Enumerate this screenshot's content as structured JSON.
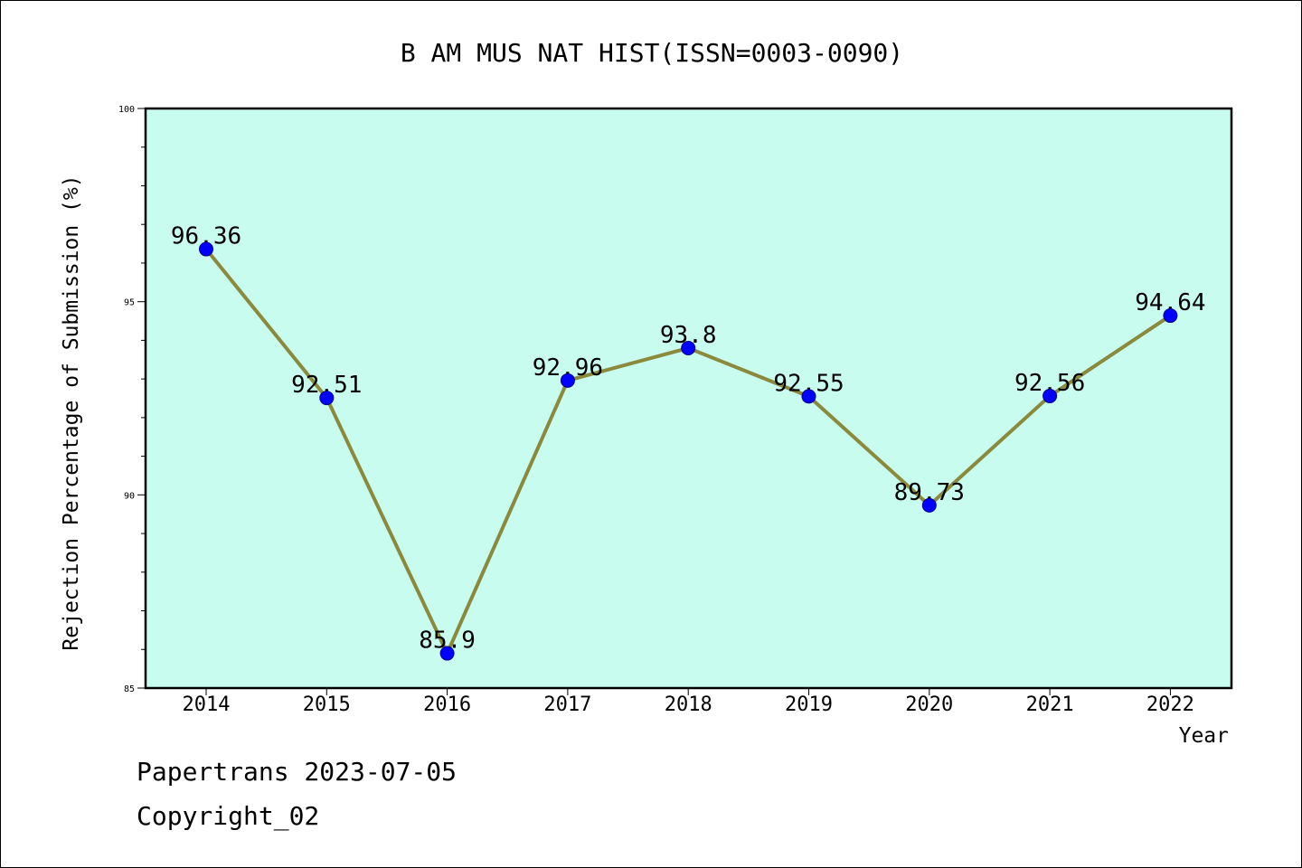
{
  "chart_data": {
    "type": "line",
    "title": "B AM MUS NAT HIST(ISSN=0003-0090)",
    "xlabel": "Year",
    "ylabel": "Rejection Percentage of Submission (%)",
    "categories": [
      "2014",
      "2015",
      "2016",
      "2017",
      "2018",
      "2019",
      "2020",
      "2021",
      "2022"
    ],
    "series": [
      {
        "values": [
          96.36,
          92.51,
          85.9,
          92.96,
          93.8,
          92.55,
          89.73,
          92.56,
          94.64
        ],
        "labels": [
          "96.36",
          "92.51",
          "85.9",
          "92.96",
          "93.8",
          "92.55",
          "89.73",
          "92.56",
          "94.64"
        ]
      }
    ],
    "ylim": [
      85,
      100
    ],
    "yticks": [
      "85",
      "90",
      "95",
      "100"
    ],
    "grid": false,
    "legend": "none",
    "colors": {
      "plot_background": "#c8fcee",
      "line": "#8b8a3c",
      "marker_fill": "#0000ff",
      "marker_edge": "#00008b"
    }
  },
  "footer": {
    "date_line": "Papertrans 2023-07-05",
    "copyright_line": "Copyright_02"
  }
}
